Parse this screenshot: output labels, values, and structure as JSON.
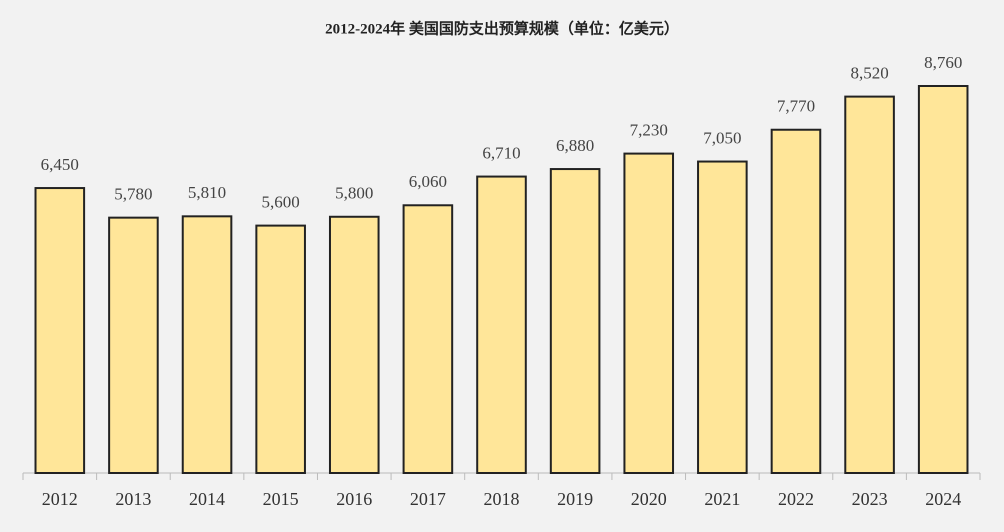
{
  "chart_data": {
    "type": "bar",
    "title": "2012-2024年 美国国防支出预算规模（单位：亿美元）",
    "categories": [
      "2012",
      "2013",
      "2014",
      "2015",
      "2016",
      "2017",
      "2018",
      "2019",
      "2020",
      "2021",
      "2022",
      "2023",
      "2024"
    ],
    "values": [
      6450,
      5780,
      5810,
      5600,
      5800,
      6060,
      6710,
      6880,
      7230,
      7050,
      7770,
      8520,
      8760
    ],
    "value_labels": [
      "6,450",
      "5,780",
      "5,810",
      "5,600",
      "5,800",
      "6,060",
      "6,710",
      "6,880",
      "7,230",
      "7,050",
      "7,770",
      "8,520",
      "8,760"
    ],
    "color": "#ffe699"
  }
}
